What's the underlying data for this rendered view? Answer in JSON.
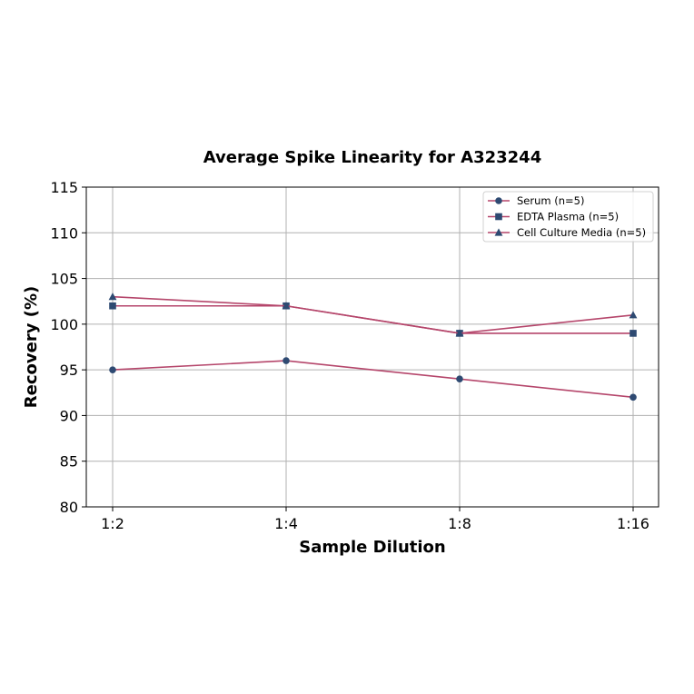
{
  "chart_data": {
    "type": "line",
    "title": "Average Spike Linearity for A323244",
    "xlabel": "Sample Dilution",
    "ylabel": "Recovery (%)",
    "categories": [
      "1:2",
      "1:4",
      "1:8",
      "1:16"
    ],
    "ylim": [
      80,
      115
    ],
    "yticks": [
      80,
      85,
      90,
      95,
      100,
      105,
      110,
      115
    ],
    "grid": true,
    "legend_position": "upper right",
    "series": [
      {
        "name": "Serum (n=5)",
        "marker": "circle",
        "values": [
          95,
          96,
          94,
          92
        ]
      },
      {
        "name": "EDTA Plasma (n=5)",
        "marker": "square",
        "values": [
          102,
          102,
          99,
          99
        ]
      },
      {
        "name": "Cell Culture Media (n=5)",
        "marker": "triangle",
        "values": [
          103,
          102,
          99,
          101
        ]
      }
    ],
    "colors": {
      "line": "#b5466b",
      "marker": "#2e4a72"
    }
  }
}
